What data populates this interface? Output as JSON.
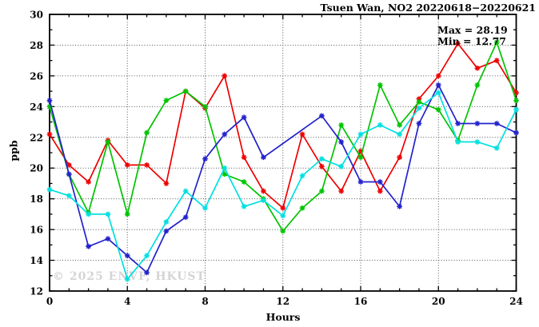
{
  "chart_data": {
    "type": "line",
    "title": "Tsuen Wan, NO2 20220618−20220621",
    "xlabel": "Hours",
    "ylabel": "ppb",
    "xlim": [
      0,
      24
    ],
    "ylim": [
      12,
      30
    ],
    "xticks": [
      0,
      4,
      8,
      12,
      16,
      20,
      24
    ],
    "yticks": [
      12,
      14,
      16,
      18,
      20,
      22,
      24,
      26,
      28,
      30
    ],
    "x_minor_step": 1,
    "y_minor_step": 1,
    "grid": true,
    "x": [
      0,
      1,
      2,
      3,
      4,
      5,
      6,
      7,
      8,
      9,
      10,
      11,
      12,
      13,
      14,
      15,
      16,
      17,
      18,
      19,
      20,
      21,
      22,
      23,
      24
    ],
    "series": [
      {
        "name": "red-line",
        "color": "#ee0000",
        "values": [
          22.2,
          20.2,
          19.1,
          21.8,
          20.2,
          20.2,
          19.0,
          25.0,
          23.9,
          26.0,
          20.7,
          18.5,
          17.4,
          22.2,
          20.1,
          18.5,
          21.1,
          18.5,
          20.7,
          24.5,
          26.0,
          28.1,
          26.5,
          27.0,
          24.9
        ]
      },
      {
        "name": "green-line",
        "color": "#00c400",
        "values": [
          24.0,
          19.6,
          17.1,
          21.7,
          17.0,
          22.3,
          24.4,
          25.0,
          24.0,
          19.6,
          19.1,
          18.0,
          15.9,
          17.4,
          18.5,
          22.8,
          20.7,
          25.4,
          22.8,
          24.3,
          23.8,
          21.8,
          25.4,
          28.19,
          24.4
        ]
      },
      {
        "name": "blue-line",
        "color": "#2222cc",
        "values": [
          24.4,
          19.6,
          14.9,
          15.4,
          14.3,
          13.2,
          15.9,
          16.8,
          20.6,
          22.2,
          23.3,
          20.7,
          null,
          null,
          23.4,
          21.7,
          19.1,
          19.1,
          17.5,
          22.9,
          25.4,
          22.9,
          22.9,
          22.9,
          22.3
        ]
      },
      {
        "name": "cyan-line",
        "color": "#00e0e0",
        "values": [
          18.6,
          18.2,
          17.0,
          17.0,
          12.77,
          14.3,
          16.5,
          18.5,
          17.4,
          20.0,
          17.5,
          17.9,
          16.9,
          19.5,
          20.6,
          20.1,
          22.2,
          22.8,
          22.2,
          23.9,
          24.9,
          21.7,
          21.7,
          21.3,
          23.8
        ]
      }
    ],
    "annotations": {
      "max_label": "Max = 28.19",
      "min_label": "Min = 12.77"
    },
    "watermark": "© 2025 ENVF, HKUST",
    "colors": {
      "frame": "#000000",
      "grid": "#555555",
      "watermark": "#d4d4d4"
    }
  }
}
